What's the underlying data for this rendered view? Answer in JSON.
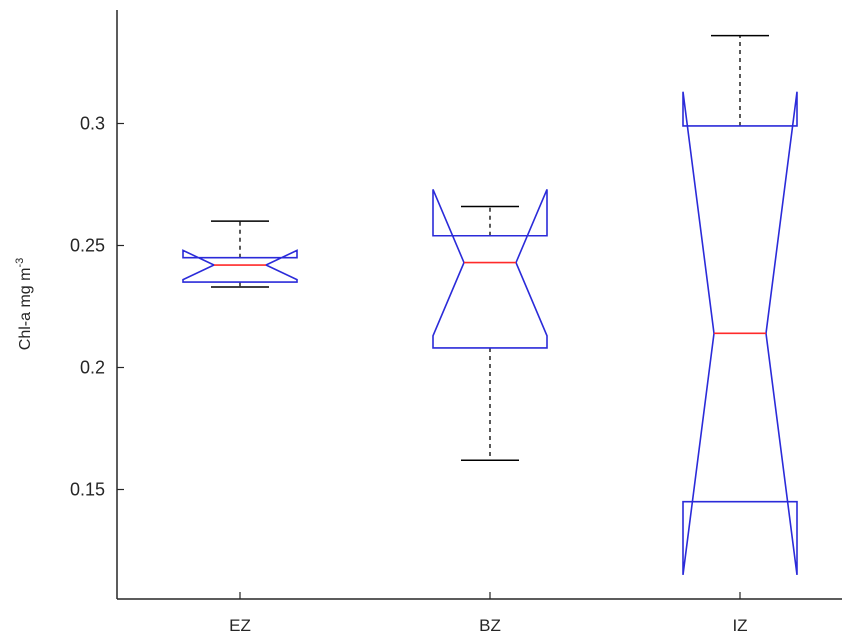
{
  "chart_data": {
    "type": "boxplot",
    "notched": true,
    "ylabel": {
      "base": "Chl-a mg m",
      "superscript": "-3"
    },
    "ylim": [
      0.103,
      0.35
    ],
    "yticks": [
      {
        "value": 0.15,
        "label": "0.15"
      },
      {
        "value": 0.2,
        "label": "0.2"
      },
      {
        "value": 0.25,
        "label": "0.25"
      },
      {
        "value": 0.3,
        "label": "0.3"
      }
    ],
    "categories": [
      "EZ",
      "BZ",
      "IZ"
    ],
    "boxes": [
      {
        "category": "EZ",
        "whisker_low": 0.233,
        "q1": 0.235,
        "median": 0.242,
        "q3": 0.245,
        "whisker_high": 0.26,
        "notch_low": 0.236,
        "notch_high": 0.248
      },
      {
        "category": "BZ",
        "whisker_low": 0.162,
        "q1": 0.208,
        "median": 0.243,
        "q3": 0.254,
        "whisker_high": 0.266,
        "notch_low": 0.213,
        "notch_high": 0.273
      },
      {
        "category": "IZ",
        "whisker_low": 0.145,
        "q1": 0.145,
        "median": 0.214,
        "q3": 0.299,
        "whisker_high": 0.336,
        "notch_low": 0.115,
        "notch_high": 0.313
      }
    ],
    "colors": {
      "box": "#2b2bd9",
      "median": "#ff2a2a",
      "whisker": "#000000",
      "axis": "#262626"
    }
  }
}
